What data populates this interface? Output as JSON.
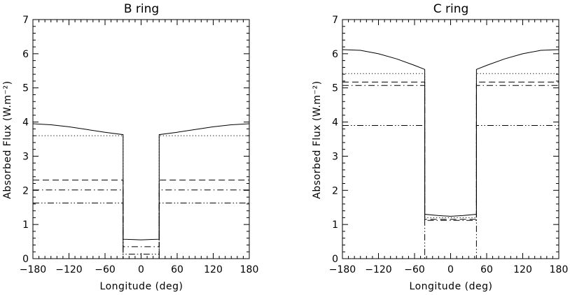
{
  "chart_data": [
    {
      "type": "line",
      "title": "B ring",
      "xlabel": "Longitude (deg)",
      "ylabel": "Absorbed Flux (W.m⁻²)",
      "xlim": [
        -180,
        180
      ],
      "ylim": [
        0,
        7
      ],
      "xticks": [
        -180,
        -120,
        -60,
        0,
        60,
        120,
        180
      ],
      "yticks": [
        0,
        1,
        2,
        3,
        4,
        5,
        6,
        7
      ],
      "xtick_labels": [
        "−180",
        "−120",
        "−60",
        "0",
        "60",
        "120",
        "180"
      ],
      "ytick_labels": [
        "0",
        "1",
        "2",
        "3",
        "4",
        "5",
        "6",
        "7"
      ],
      "series": [
        {
          "style": "solid",
          "x": [
            -180,
            -150,
            -120,
            -90,
            -60,
            -30,
            -30,
            -15,
            0,
            15,
            30,
            30,
            60,
            90,
            120,
            150,
            180
          ],
          "y": [
            3.95,
            3.92,
            3.86,
            3.78,
            3.7,
            3.63,
            0.57,
            0.56,
            0.55,
            0.56,
            0.57,
            3.63,
            3.7,
            3.78,
            3.86,
            3.92,
            3.95
          ]
        },
        {
          "style": "dotted",
          "x": [
            -180,
            -30,
            -30,
            30,
            30,
            180
          ],
          "y": [
            3.6,
            3.6,
            0.0,
            0.0,
            3.6,
            3.6
          ]
        },
        {
          "style": "dashed",
          "x": [
            -180,
            -30,
            -30,
            30,
            30,
            180
          ],
          "y": [
            2.3,
            2.3,
            0.0,
            0.0,
            2.3,
            2.3
          ]
        },
        {
          "style": "dashdot",
          "x": [
            -180,
            -30,
            -30,
            30,
            30,
            180
          ],
          "y": [
            2.01,
            2.01,
            0.35,
            0.35,
            2.01,
            2.01
          ]
        },
        {
          "style": "dashdotdot",
          "x": [
            -180,
            -30,
            -30,
            30,
            30,
            180
          ],
          "y": [
            1.63,
            1.63,
            0.13,
            0.13,
            1.63,
            1.63
          ]
        }
      ]
    },
    {
      "type": "line",
      "title": "C ring",
      "xlabel": "Longitude (deg)",
      "ylabel": "Absorbed Flux (W.m⁻²)",
      "xlim": [
        -180,
        180
      ],
      "ylim": [
        0,
        7
      ],
      "xticks": [
        -180,
        -120,
        -60,
        0,
        60,
        120,
        180
      ],
      "yticks": [
        0,
        1,
        2,
        3,
        4,
        5,
        6,
        7
      ],
      "xtick_labels": [
        "−180",
        "−120",
        "−60",
        "0",
        "60",
        "120",
        "180"
      ],
      "ytick_labels": [
        "0",
        "1",
        "2",
        "3",
        "4",
        "5",
        "6",
        "7"
      ],
      "series": [
        {
          "style": "solid",
          "x": [
            -180,
            -150,
            -120,
            -90,
            -60,
            -43,
            -43,
            -20,
            0,
            20,
            43,
            43,
            60,
            90,
            120,
            150,
            180
          ],
          "y": [
            6.12,
            6.1,
            6.0,
            5.85,
            5.66,
            5.54,
            1.3,
            1.26,
            1.24,
            1.26,
            1.3,
            5.54,
            5.66,
            5.85,
            6.0,
            6.1,
            6.12
          ]
        },
        {
          "style": "dotted",
          "x": [
            -180,
            -43,
            -43,
            43,
            43,
            180
          ],
          "y": [
            5.42,
            5.42,
            1.2,
            1.2,
            5.42,
            5.42
          ]
        },
        {
          "style": "dashed",
          "x": [
            -180,
            -43,
            -43,
            43,
            43,
            180
          ],
          "y": [
            5.17,
            5.17,
            1.15,
            1.15,
            5.17,
            5.17
          ]
        },
        {
          "style": "dashdot",
          "x": [
            -180,
            -43,
            -43,
            43,
            43,
            180
          ],
          "y": [
            5.07,
            5.07,
            1.12,
            1.12,
            5.07,
            5.07
          ]
        },
        {
          "style": "dashdotdot",
          "x": [
            -180,
            -43,
            -43,
            43,
            43,
            180
          ],
          "y": [
            3.9,
            3.9,
            0.0,
            0.0,
            3.9,
            3.9
          ]
        }
      ]
    }
  ]
}
